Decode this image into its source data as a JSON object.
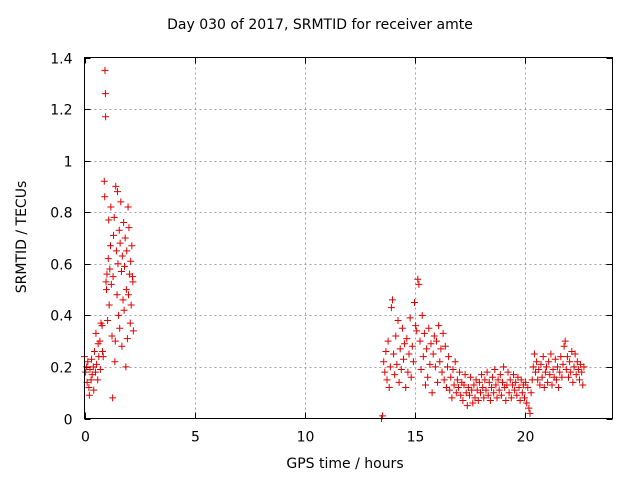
{
  "chart_data": {
    "type": "scatter",
    "title": "Day 030 of 2017, SRMTID for receiver amte",
    "xlabel": "GPS time / hours",
    "ylabel": "SRMTID / TECUs",
    "xlim": [
      0,
      24
    ],
    "ylim": [
      0,
      1.4
    ],
    "xticks": [
      0,
      5,
      10,
      15,
      20
    ],
    "yticks": [
      0,
      0.2,
      0.4,
      0.6,
      0.8,
      1,
      1.2,
      1.4
    ],
    "xtick_labels": [
      "0",
      "5",
      "10",
      "15",
      "20"
    ],
    "ytick_labels": [
      "0",
      "0.2",
      "0.4",
      "0.6",
      "0.8",
      "1",
      "1.2",
      "1.4"
    ],
    "grid": true,
    "marker": "+",
    "color": "#e00000",
    "series": [
      {
        "name": "SRMTID",
        "points": [
          [
            0.0,
            0.24
          ],
          [
            0.05,
            0.18
          ],
          [
            0.1,
            0.2
          ],
          [
            0.12,
            0.14
          ],
          [
            0.15,
            0.22
          ],
          [
            0.2,
            0.12
          ],
          [
            0.22,
            0.09
          ],
          [
            0.25,
            0.19
          ],
          [
            0.3,
            0.15
          ],
          [
            0.32,
            0.23
          ],
          [
            0.35,
            0.17
          ],
          [
            0.4,
            0.2
          ],
          [
            0.42,
            0.11
          ],
          [
            0.45,
            0.26
          ],
          [
            0.5,
            0.18
          ],
          [
            0.52,
            0.33
          ],
          [
            0.55,
            0.21
          ],
          [
            0.6,
            0.15
          ],
          [
            0.62,
            0.29
          ],
          [
            0.65,
            0.24
          ],
          [
            0.7,
            0.3
          ],
          [
            0.72,
            0.19
          ],
          [
            0.75,
            0.37
          ],
          [
            0.8,
            0.36
          ],
          [
            0.82,
            0.26
          ],
          [
            0.85,
            0.24
          ],
          [
            0.9,
            0.92
          ],
          [
            0.92,
            0.86
          ],
          [
            0.93,
            1.35
          ],
          [
            0.95,
            1.26
          ],
          [
            0.96,
            1.17
          ],
          [
            0.98,
            0.53
          ],
          [
            1.0,
            0.5
          ],
          [
            1.02,
            0.56
          ],
          [
            1.05,
            0.38
          ],
          [
            1.08,
            0.62
          ],
          [
            1.1,
            0.77
          ],
          [
            1.12,
            0.44
          ],
          [
            1.15,
            0.58
          ],
          [
            1.18,
            0.67
          ],
          [
            1.2,
            0.82
          ],
          [
            1.22,
            0.52
          ],
          [
            1.25,
            0.32
          ],
          [
            1.28,
            0.08
          ],
          [
            1.3,
            0.55
          ],
          [
            1.32,
            0.71
          ],
          [
            1.35,
            0.78
          ],
          [
            1.38,
            0.22
          ],
          [
            1.4,
            0.3
          ],
          [
            1.42,
            0.9
          ],
          [
            1.45,
            0.65
          ],
          [
            1.48,
            0.48
          ],
          [
            1.5,
            0.88
          ],
          [
            1.52,
            0.6
          ],
          [
            1.55,
            0.4
          ],
          [
            1.58,
            0.73
          ],
          [
            1.6,
            0.35
          ],
          [
            1.62,
            0.68
          ],
          [
            1.65,
            0.84
          ],
          [
            1.68,
            0.57
          ],
          [
            1.7,
            0.28
          ],
          [
            1.72,
            0.63
          ],
          [
            1.75,
            0.46
          ],
          [
            1.78,
            0.76
          ],
          [
            1.8,
            0.42
          ],
          [
            1.82,
            0.59
          ],
          [
            1.85,
            0.7
          ],
          [
            1.88,
            0.2
          ],
          [
            1.9,
            0.5
          ],
          [
            1.92,
            0.65
          ],
          [
            1.95,
            0.31
          ],
          [
            1.98,
            0.82
          ],
          [
            2.0,
            0.48
          ],
          [
            2.02,
            0.74
          ],
          [
            2.05,
            0.56
          ],
          [
            2.08,
            0.37
          ],
          [
            2.1,
            0.61
          ],
          [
            2.12,
            0.44
          ],
          [
            2.15,
            0.67
          ],
          [
            2.18,
            0.55
          ],
          [
            2.2,
            0.53
          ],
          [
            2.22,
            0.34
          ],
          [
            13.5,
            0.0
          ],
          [
            13.55,
            0.01
          ],
          [
            13.6,
            0.22
          ],
          [
            13.65,
            0.18
          ],
          [
            13.7,
            0.26
          ],
          [
            13.75,
            0.15
          ],
          [
            13.8,
            0.3
          ],
          [
            13.85,
            0.12
          ],
          [
            13.9,
            0.2
          ],
          [
            13.95,
            0.43
          ],
          [
            14.0,
            0.46
          ],
          [
            14.05,
            0.25
          ],
          [
            14.1,
            0.17
          ],
          [
            14.15,
            0.32
          ],
          [
            14.2,
            0.21
          ],
          [
            14.25,
            0.38
          ],
          [
            14.3,
            0.14
          ],
          [
            14.35,
            0.27
          ],
          [
            14.4,
            0.19
          ],
          [
            14.45,
            0.35
          ],
          [
            14.5,
            0.23
          ],
          [
            14.55,
            0.29
          ],
          [
            14.6,
            0.12
          ],
          [
            14.65,
            0.31
          ],
          [
            14.7,
            0.18
          ],
          [
            14.75,
            0.25
          ],
          [
            14.8,
            0.39
          ],
          [
            14.85,
            0.16
          ],
          [
            14.9,
            0.28
          ],
          [
            14.95,
            0.22
          ],
          [
            15.0,
            0.45
          ],
          [
            15.05,
            0.36
          ],
          [
            15.1,
            0.34
          ],
          [
            15.15,
            0.54
          ],
          [
            15.2,
            0.52
          ],
          [
            15.25,
            0.3
          ],
          [
            15.3,
            0.19
          ],
          [
            15.35,
            0.4
          ],
          [
            15.4,
            0.24
          ],
          [
            15.45,
            0.33
          ],
          [
            15.5,
            0.13
          ],
          [
            15.55,
            0.27
          ],
          [
            15.6,
            0.16
          ],
          [
            15.65,
            0.35
          ],
          [
            15.7,
            0.21
          ],
          [
            15.75,
            0.29
          ],
          [
            15.8,
            0.1
          ],
          [
            15.85,
            0.25
          ],
          [
            15.9,
            0.32
          ],
          [
            15.95,
            0.2
          ],
          [
            16.0,
            0.3
          ],
          [
            16.05,
            0.14
          ],
          [
            16.1,
            0.36
          ],
          [
            16.15,
            0.22
          ],
          [
            16.2,
            0.27
          ],
          [
            16.25,
            0.18
          ],
          [
            16.3,
            0.33
          ],
          [
            16.35,
            0.15
          ],
          [
            16.4,
            0.28
          ],
          [
            16.45,
            0.12
          ],
          [
            16.5,
            0.2
          ],
          [
            16.55,
            0.24
          ],
          [
            16.6,
            0.11
          ],
          [
            16.65,
            0.16
          ],
          [
            16.7,
            0.08
          ],
          [
            16.75,
            0.19
          ],
          [
            16.8,
            0.13
          ],
          [
            16.85,
            0.22
          ],
          [
            16.9,
            0.1
          ],
          [
            16.95,
            0.15
          ],
          [
            17.0,
            0.12
          ],
          [
            17.05,
            0.18
          ],
          [
            17.1,
            0.09
          ],
          [
            17.15,
            0.14
          ],
          [
            17.2,
            0.07
          ],
          [
            17.25,
            0.13
          ],
          [
            17.3,
            0.17
          ],
          [
            17.35,
            0.1
          ],
          [
            17.4,
            0.05
          ],
          [
            17.45,
            0.12
          ],
          [
            17.5,
            0.09
          ],
          [
            17.55,
            0.16
          ],
          [
            17.6,
            0.11
          ],
          [
            17.65,
            0.06
          ],
          [
            17.7,
            0.13
          ],
          [
            17.75,
            0.08
          ],
          [
            17.8,
            0.15
          ],
          [
            17.85,
            0.11
          ],
          [
            17.9,
            0.07
          ],
          [
            17.95,
            0.14
          ],
          [
            18.0,
            0.1
          ],
          [
            18.05,
            0.17
          ],
          [
            18.1,
            0.12
          ],
          [
            18.15,
            0.08
          ],
          [
            18.2,
            0.15
          ],
          [
            18.25,
            0.11
          ],
          [
            18.3,
            0.18
          ],
          [
            18.35,
            0.09
          ],
          [
            18.4,
            0.14
          ],
          [
            18.45,
            0.07
          ],
          [
            18.5,
            0.12
          ],
          [
            18.55,
            0.16
          ],
          [
            18.6,
            0.1
          ],
          [
            18.65,
            0.19
          ],
          [
            18.7,
            0.13
          ],
          [
            18.75,
            0.08
          ],
          [
            18.8,
            0.15
          ],
          [
            18.85,
            0.11
          ],
          [
            18.9,
            0.17
          ],
          [
            18.95,
            0.09
          ],
          [
            19.0,
            0.14
          ],
          [
            19.05,
            0.2
          ],
          [
            19.1,
            0.12
          ],
          [
            19.15,
            0.07
          ],
          [
            19.2,
            0.13
          ],
          [
            19.25,
            0.18
          ],
          [
            19.3,
            0.1
          ],
          [
            19.35,
            0.15
          ],
          [
            19.4,
            0.08
          ],
          [
            19.45,
            0.13
          ],
          [
            19.5,
            0.17
          ],
          [
            19.55,
            0.11
          ],
          [
            19.6,
            0.14
          ],
          [
            19.65,
            0.09
          ],
          [
            19.7,
            0.16
          ],
          [
            19.75,
            0.12
          ],
          [
            19.8,
            0.07
          ],
          [
            19.85,
            0.15
          ],
          [
            19.9,
            0.1
          ],
          [
            19.95,
            0.13
          ],
          [
            20.0,
            0.08
          ],
          [
            20.05,
            0.14
          ],
          [
            20.1,
            0.06
          ],
          [
            20.15,
            0.12
          ],
          [
            20.2,
            0.04
          ],
          [
            20.25,
            0.02
          ],
          [
            20.3,
            0.1
          ],
          [
            20.35,
            0.15
          ],
          [
            20.4,
            0.2
          ],
          [
            20.45,
            0.25
          ],
          [
            20.5,
            0.18
          ],
          [
            20.55,
            0.22
          ],
          [
            20.6,
            0.15
          ],
          [
            20.65,
            0.19
          ],
          [
            20.7,
            0.13
          ],
          [
            20.75,
            0.21
          ],
          [
            20.8,
            0.16
          ],
          [
            20.85,
            0.24
          ],
          [
            20.9,
            0.12
          ],
          [
            20.95,
            0.18
          ],
          [
            21.0,
            0.2
          ],
          [
            21.05,
            0.14
          ],
          [
            21.1,
            0.22
          ],
          [
            21.15,
            0.17
          ],
          [
            21.2,
            0.25
          ],
          [
            21.25,
            0.13
          ],
          [
            21.3,
            0.19
          ],
          [
            21.35,
            0.16
          ],
          [
            21.4,
            0.23
          ],
          [
            21.45,
            0.15
          ],
          [
            21.5,
            0.2
          ],
          [
            21.55,
            0.12
          ],
          [
            21.6,
            0.18
          ],
          [
            21.65,
            0.24
          ],
          [
            21.7,
            0.16
          ],
          [
            21.75,
            0.21
          ],
          [
            21.8,
            0.28
          ],
          [
            21.85,
            0.3
          ],
          [
            21.9,
            0.19
          ],
          [
            21.95,
            0.24
          ],
          [
            22.0,
            0.16
          ],
          [
            22.05,
            0.22
          ],
          [
            22.1,
            0.18
          ],
          [
            22.15,
            0.26
          ],
          [
            22.2,
            0.14
          ],
          [
            22.25,
            0.2
          ],
          [
            22.3,
            0.25
          ],
          [
            22.35,
            0.17
          ],
          [
            22.4,
            0.22
          ],
          [
            22.45,
            0.19
          ],
          [
            22.5,
            0.15
          ],
          [
            22.55,
            0.21
          ],
          [
            22.6,
            0.18
          ],
          [
            22.65,
            0.13
          ],
          [
            22.7,
            0.2
          ]
        ]
      }
    ]
  }
}
